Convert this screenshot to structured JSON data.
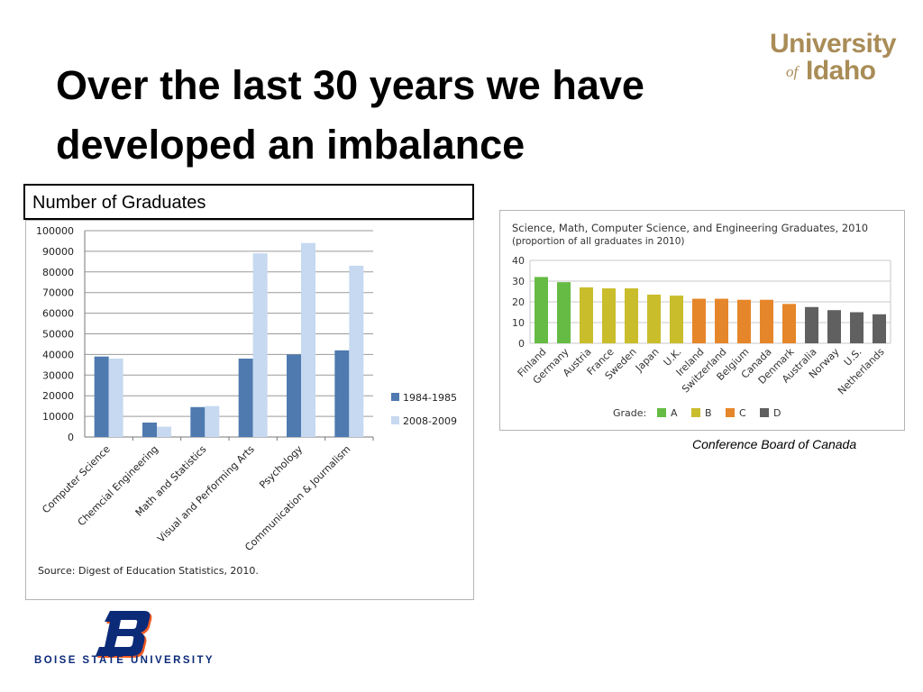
{
  "slide": {
    "title": "Over the last 30 years we have developed an imbalance",
    "logo_top_right": {
      "line1": "University",
      "line2": "of",
      "line3": "Idaho",
      "color": "#a98c57"
    },
    "chart1_label": "Number of Graduates",
    "credit": "Conference Board of Canada",
    "logo_bottom_left": {
      "text": "BOISE STATE UNIVERSITY",
      "letter": "B",
      "color_blue": "#0b2a78",
      "color_orange": "#f15a22"
    }
  },
  "chart_data": [
    {
      "type": "bar",
      "title": "",
      "categories": [
        "Computer Science",
        "Chemcial Engineering",
        "Math and Statistics",
        "Visual and Performing Arts",
        "Psychology",
        "Communication & Journalism"
      ],
      "series": [
        {
          "name": "1984-1985",
          "values": [
            39000,
            7000,
            14500,
            38000,
            40000,
            42000
          ],
          "color": "#4f7ab0"
        },
        {
          "name": "2008-2009",
          "values": [
            38000,
            5000,
            15000,
            89000,
            94000,
            83000
          ],
          "color": "#c6d9f0"
        }
      ],
      "ylim": [
        0,
        100000
      ],
      "yticks": [
        "0",
        "10000",
        "20000",
        "30000",
        "40000",
        "50000",
        "60000",
        "70000",
        "80000",
        "90000",
        "100000"
      ],
      "grid": true,
      "legend": "right",
      "source": "Source: Digest of Education Statistics, 2010."
    },
    {
      "type": "bar",
      "title": "Science, Math, Computer Science, and Engineering Graduates, 2010",
      "subtitle": "(proportion of all graduates in 2010)",
      "categories": [
        "Finland",
        "Germany",
        "Austria",
        "France",
        "Sweden",
        "Japan",
        "U.K.",
        "Ireland",
        "Switzerland",
        "Belgium",
        "Canada",
        "Denmark",
        "Australia",
        "Norway",
        "U.S.",
        "Netherlands"
      ],
      "values": [
        32,
        29.5,
        27,
        26.5,
        26.5,
        23.5,
        23,
        21.5,
        21.5,
        21,
        21,
        19,
        17.5,
        16,
        15,
        14
      ],
      "grades": [
        "A",
        "A",
        "B",
        "B",
        "B",
        "B",
        "B",
        "C",
        "C",
        "C",
        "C",
        "C",
        "D",
        "D",
        "D",
        "D"
      ],
      "ylim": [
        0,
        40
      ],
      "yticks": [
        "0",
        "10",
        "20",
        "30",
        "40"
      ],
      "grid": true,
      "legend": "bottom",
      "legend_title": "Grade:",
      "legend_items": [
        {
          "label": "A",
          "color": "#66bb44"
        },
        {
          "label": "B",
          "color": "#c9bd2c"
        },
        {
          "label": "C",
          "color": "#e6862a"
        },
        {
          "label": "D",
          "color": "#606060"
        }
      ]
    }
  ]
}
